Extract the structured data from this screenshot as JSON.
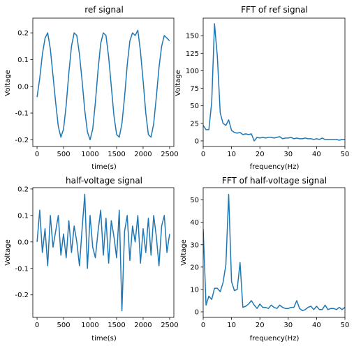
{
  "colors": {
    "line": "#1f77b4",
    "axis": "#000000",
    "background": "#ffffff"
  },
  "chart_data": [
    {
      "type": "line",
      "title": "ref signal",
      "xlabel": "time(s)",
      "ylabel": "Voltage",
      "xlim": [
        -80,
        2580
      ],
      "ylim": [
        -0.225,
        0.255
      ],
      "xticks": [
        0,
        500,
        1000,
        1500,
        2000,
        2500
      ],
      "yticks": [
        -0.2,
        -0.1,
        0.0,
        0.1,
        0.2
      ],
      "xtick_labels": [
        "0",
        "500",
        "1000",
        "1500",
        "2000",
        "2500"
      ],
      "ytick_labels": [
        "-0.2",
        "-0.1",
        "0.0",
        "0.1",
        "0.2"
      ],
      "grid": false,
      "series": [
        {
          "description": "noisy sinusoid, ~4.3 periods over the record",
          "x": [
            0,
            50,
            100,
            150,
            200,
            250,
            300,
            350,
            400,
            450,
            500,
            550,
            600,
            650,
            700,
            750,
            800,
            850,
            900,
            950,
            1000,
            1050,
            1100,
            1150,
            1200,
            1250,
            1300,
            1350,
            1400,
            1450,
            1500,
            1550,
            1600,
            1650,
            1700,
            1750,
            1800,
            1850,
            1900,
            1950,
            2000,
            2050,
            2100,
            2150,
            2200,
            2250,
            2300,
            2350,
            2400,
            2450,
            2500
          ],
          "y": [
            -0.04,
            0.03,
            0.12,
            0.18,
            0.2,
            0.14,
            0.04,
            -0.06,
            -0.15,
            -0.19,
            -0.16,
            -0.07,
            0.05,
            0.15,
            0.2,
            0.19,
            0.12,
            0.02,
            -0.09,
            -0.17,
            -0.2,
            -0.16,
            -0.06,
            0.06,
            0.16,
            0.2,
            0.19,
            0.11,
            0.0,
            -0.11,
            -0.18,
            -0.19,
            -0.14,
            -0.04,
            0.08,
            0.17,
            0.2,
            0.19,
            0.21,
            0.13,
            0.02,
            -0.1,
            -0.18,
            -0.19,
            -0.14,
            -0.04,
            0.07,
            0.15,
            0.19,
            0.18,
            0.17
          ]
        }
      ]
    },
    {
      "type": "line",
      "title": "FFT of ref signal",
      "xlabel": "frequency(Hz)",
      "ylabel": "Voltage",
      "xlim": [
        0,
        50
      ],
      "ylim": [
        -8,
        175
      ],
      "xticks": [
        0,
        10,
        20,
        30,
        40,
        50
      ],
      "yticks": [
        0,
        25,
        50,
        75,
        100,
        125,
        150
      ],
      "xtick_labels": [
        "0",
        "10",
        "20",
        "30",
        "40",
        "50"
      ],
      "ytick_labels": [
        "0",
        "25",
        "50",
        "75",
        "100",
        "125",
        "150"
      ],
      "grid": false,
      "series": [
        {
          "x": [
            0,
            1,
            2,
            3,
            4,
            5,
            6,
            7,
            8,
            9,
            10,
            11,
            12,
            13,
            14,
            15,
            16,
            17,
            18,
            19,
            20,
            21,
            22,
            23,
            24,
            25,
            26,
            27,
            28,
            29,
            30,
            31,
            32,
            33,
            34,
            35,
            36,
            37,
            38,
            39,
            40,
            41,
            42,
            43,
            44,
            45,
            46,
            47,
            48,
            49,
            50
          ],
          "y": [
            22,
            16,
            16,
            55,
            167,
            120,
            40,
            25,
            22,
            30,
            15,
            12,
            11,
            12,
            9,
            10,
            9,
            10,
            0,
            5,
            4,
            5,
            4,
            5,
            5,
            4,
            5,
            6,
            3,
            4,
            4,
            5,
            3,
            4,
            3,
            3,
            4,
            3,
            3,
            2,
            3,
            2,
            4,
            2,
            2,
            2,
            2,
            2,
            1,
            2,
            2
          ]
        }
      ]
    },
    {
      "type": "line",
      "title": "half-voltage signal",
      "xlabel": "time(s)",
      "ylabel": "Voltage",
      "xlim": [
        -80,
        2580
      ],
      "ylim": [
        -0.285,
        0.205
      ],
      "xticks": [
        0,
        500,
        1000,
        1500,
        2000,
        2500
      ],
      "yticks": [
        -0.2,
        -0.1,
        0.0,
        0.1,
        0.2
      ],
      "xtick_labels": [
        "0",
        "500",
        "1000",
        "1500",
        "2000",
        "2500"
      ],
      "ytick_labels": [
        "-0.2",
        "-0.1",
        "0.0",
        "0.1",
        "0.2"
      ],
      "grid": false,
      "series": [
        {
          "x": [
            0,
            50,
            100,
            150,
            200,
            250,
            300,
            350,
            400,
            450,
            500,
            550,
            600,
            650,
            700,
            750,
            800,
            850,
            900,
            950,
            1000,
            1050,
            1100,
            1150,
            1200,
            1250,
            1300,
            1350,
            1400,
            1450,
            1500,
            1550,
            1600,
            1650,
            1700,
            1750,
            1800,
            1850,
            1900,
            1950,
            2000,
            2050,
            2100,
            2150,
            2200,
            2250,
            2300,
            2350,
            2400,
            2450,
            2500
          ],
          "y": [
            0.0,
            0.12,
            -0.04,
            0.05,
            -0.09,
            0.1,
            -0.02,
            0.04,
            0.1,
            -0.05,
            0.03,
            -0.06,
            0.08,
            -0.04,
            0.06,
            0.0,
            -0.09,
            0.05,
            0.18,
            -0.1,
            0.1,
            -0.02,
            -0.06,
            0.04,
            0.12,
            -0.05,
            0.09,
            -0.08,
            0.08,
            0.02,
            -0.06,
            0.12,
            -0.26,
            0.04,
            0.1,
            -0.07,
            0.06,
            0.0,
            0.1,
            -0.08,
            0.05,
            -0.04,
            0.09,
            -0.05,
            0.1,
            0.02,
            -0.09,
            0.06,
            0.1,
            -0.04,
            0.03
          ]
        }
      ]
    },
    {
      "type": "line",
      "title": "FFT of half-voltage signal",
      "xlabel": "frequency(Hz)",
      "ylabel": "Voltage",
      "xlim": [
        0,
        50
      ],
      "ylim": [
        -2.5,
        55.5
      ],
      "xticks": [
        0,
        10,
        20,
        30,
        40,
        50
      ],
      "yticks": [
        0,
        10,
        20,
        30,
        40,
        50
      ],
      "xtick_labels": [
        "0",
        "10",
        "20",
        "30",
        "40",
        "50"
      ],
      "ytick_labels": [
        "0",
        "10",
        "20",
        "30",
        "40",
        "50"
      ],
      "grid": false,
      "series": [
        {
          "x": [
            0,
            1,
            2,
            3,
            4,
            5,
            6,
            7,
            8,
            9,
            10,
            11,
            12,
            13,
            14,
            15,
            16,
            17,
            18,
            19,
            20,
            21,
            22,
            23,
            24,
            25,
            26,
            27,
            28,
            29,
            30,
            31,
            32,
            33,
            34,
            35,
            36,
            37,
            38,
            39,
            40,
            41,
            42,
            43,
            44,
            45,
            46,
            47,
            48,
            49,
            50
          ],
          "y": [
            37,
            3,
            7,
            5.5,
            10.5,
            10.5,
            9,
            13,
            21,
            52.5,
            13.5,
            9.5,
            10,
            22,
            2,
            2.5,
            3.5,
            5,
            3,
            1.5,
            3.5,
            2,
            2,
            1.5,
            3,
            2,
            1.5,
            3,
            2,
            1.5,
            1.5,
            2,
            2,
            5,
            1.5,
            0.5,
            1,
            2,
            2.5,
            1,
            2.5,
            1,
            1,
            3,
            1,
            1.5,
            1.5,
            1,
            2,
            1,
            2
          ]
        }
      ]
    }
  ]
}
